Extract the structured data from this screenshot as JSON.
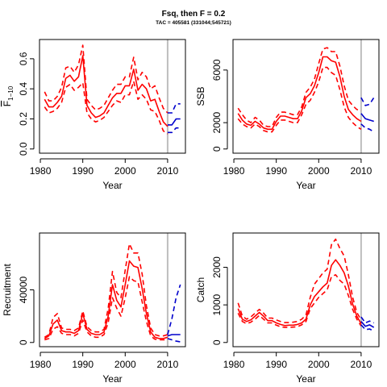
{
  "title": "Fsq, then F = 0.2",
  "subtitle": "TAC = 405581 (331044;545721)",
  "colors": {
    "historic": "#ff0000",
    "projection": "#0000cc",
    "divider": "#bebebe",
    "axis": "#000000"
  },
  "chart_data": [
    {
      "type": "line",
      "ylabel": "F̄₁₋₁₀",
      "ylabel_main": "F",
      "ylabel_sub": "1−10",
      "xlabel": "Year",
      "xlim": [
        1981,
        2013
      ],
      "ylim": [
        0,
        0.7
      ],
      "x_ticks": [
        "1980",
        "1990",
        "2000",
        "2010"
      ],
      "y_ticks": [
        "0.0",
        "0.2",
        "0.4",
        "0.6"
      ],
      "reference_year": 2010,
      "series": [
        {
          "style": "solid",
          "color": "red",
          "x": [
            1981,
            1982,
            1983,
            1984,
            1985,
            1986,
            1987,
            1988,
            1989,
            1990,
            1991,
            1992,
            1993,
            1994,
            1995,
            1996,
            1997,
            1998,
            1999,
            2000,
            2001,
            2002,
            2003,
            2004,
            2005,
            2006,
            2007,
            2008,
            2009,
            2010
          ],
          "y": [
            0.33,
            0.28,
            0.28,
            0.31,
            0.35,
            0.47,
            0.49,
            0.45,
            0.48,
            0.62,
            0.29,
            0.24,
            0.21,
            0.22,
            0.24,
            0.29,
            0.34,
            0.37,
            0.37,
            0.42,
            0.42,
            0.53,
            0.39,
            0.43,
            0.4,
            0.32,
            0.33,
            0.25,
            0.18,
            0.15
          ]
        },
        {
          "style": "dashed",
          "color": "red",
          "x": [
            1981,
            1982,
            1983,
            1984,
            1985,
            1986,
            1987,
            1988,
            1989,
            1990,
            1991,
            1992,
            1993,
            1994,
            1995,
            1996,
            1997,
            1998,
            1999,
            2000,
            2001,
            2002,
            2003,
            2004,
            2005,
            2006,
            2007,
            2008,
            2009,
            2010
          ],
          "y": [
            0.38,
            0.32,
            0.32,
            0.35,
            0.41,
            0.54,
            0.55,
            0.51,
            0.56,
            0.69,
            0.33,
            0.29,
            0.26,
            0.27,
            0.29,
            0.34,
            0.39,
            0.43,
            0.43,
            0.48,
            0.48,
            0.61,
            0.46,
            0.51,
            0.48,
            0.4,
            0.42,
            0.34,
            0.27,
            0.24
          ]
        },
        {
          "style": "dashed",
          "color": "red",
          "x": [
            1981,
            1982,
            1983,
            1984,
            1985,
            1986,
            1987,
            1988,
            1989,
            1990,
            1991,
            1992,
            1993,
            1994,
            1995,
            1996,
            1997,
            1998,
            1999,
            2000,
            2001,
            2002,
            2003,
            2004,
            2005,
            2006,
            2007,
            2008,
            2009,
            2010
          ],
          "y": [
            0.28,
            0.24,
            0.25,
            0.27,
            0.31,
            0.41,
            0.43,
            0.39,
            0.41,
            0.44,
            0.24,
            0.2,
            0.18,
            0.19,
            0.21,
            0.25,
            0.29,
            0.32,
            0.31,
            0.36,
            0.36,
            0.45,
            0.33,
            0.36,
            0.33,
            0.26,
            0.25,
            0.19,
            0.12,
            0.1
          ]
        },
        {
          "style": "solid",
          "color": "blue",
          "x": [
            2010,
            2011,
            2012,
            2013
          ],
          "y": [
            0.16,
            0.16,
            0.2,
            0.2
          ]
        },
        {
          "style": "dashed",
          "color": "blue",
          "x": [
            2010,
            2011,
            2012,
            2013
          ],
          "y": [
            0.24,
            0.24,
            0.3,
            0.3
          ]
        },
        {
          "style": "dashed",
          "color": "blue",
          "x": [
            2010,
            2011,
            2012,
            2013
          ],
          "y": [
            0.11,
            0.11,
            0.14,
            0.14
          ]
        }
      ]
    },
    {
      "type": "line",
      "ylabel": "SSB",
      "xlabel": "Year",
      "xlim": [
        1981,
        2013
      ],
      "ylim": [
        0,
        8000
      ],
      "x_ticks": [
        "1980",
        "1990",
        "2000",
        "2010"
      ],
      "y_ticks": [
        "0",
        "2000",
        "6000"
      ],
      "reference_year": 2010,
      "series": [
        {
          "style": "solid",
          "color": "red",
          "x": [
            1981,
            1982,
            1983,
            1984,
            1985,
            1986,
            1987,
            1988,
            1989,
            1990,
            1991,
            1992,
            1993,
            1994,
            1995,
            1996,
            1997,
            1998,
            1999,
            2000,
            2001,
            2002,
            2003,
            2004,
            2005,
            2006,
            2007,
            2008,
            2009,
            2010
          ],
          "y": [
            2700,
            2200,
            1900,
            1800,
            2100,
            1900,
            1600,
            1500,
            1500,
            2100,
            2500,
            2500,
            2400,
            2300,
            2300,
            2900,
            3900,
            4200,
            4800,
            5800,
            7000,
            7000,
            6700,
            6600,
            5500,
            4000,
            3000,
            2600,
            2300,
            2100
          ]
        },
        {
          "style": "dashed",
          "color": "red",
          "x": [
            1981,
            1982,
            1983,
            1984,
            1985,
            1986,
            1987,
            1988,
            1989,
            1990,
            1991,
            1992,
            1993,
            1994,
            1995,
            1996,
            1997,
            1998,
            1999,
            2000,
            2001,
            2002,
            2003,
            2004,
            2005,
            2006,
            2007,
            2008,
            2009,
            2010
          ],
          "y": [
            3100,
            2600,
            2200,
            2000,
            2400,
            2200,
            1800,
            1700,
            1700,
            2400,
            2800,
            2800,
            2700,
            2600,
            2600,
            3200,
            4300,
            4700,
            5300,
            6500,
            7600,
            7700,
            7400,
            7400,
            6300,
            4800,
            3700,
            3300,
            3000,
            2900
          ]
        },
        {
          "style": "dashed",
          "color": "red",
          "x": [
            1981,
            1982,
            1983,
            1984,
            1985,
            1986,
            1987,
            1988,
            1989,
            1990,
            1991,
            1992,
            1993,
            1994,
            1995,
            1996,
            1997,
            1998,
            1999,
            2000,
            2001,
            2002,
            2003,
            2004,
            2005,
            2006,
            2007,
            2008,
            2009,
            2010
          ],
          "y": [
            2300,
            1900,
            1700,
            1600,
            1900,
            1700,
            1400,
            1300,
            1300,
            1800,
            2200,
            2200,
            2100,
            2000,
            2000,
            2600,
            3400,
            3700,
            4300,
            5100,
            6200,
            6200,
            5800,
            5600,
            4500,
            3200,
            2400,
            2000,
            1700,
            1500
          ]
        },
        {
          "style": "solid",
          "color": "blue",
          "x": [
            2010,
            2011,
            2012,
            2013
          ],
          "y": [
            2700,
            2300,
            2200,
            2100
          ]
        },
        {
          "style": "dashed",
          "color": "blue",
          "x": [
            2010,
            2011,
            2012,
            2013
          ],
          "y": [
            3900,
            3300,
            3400,
            3900
          ]
        },
        {
          "style": "dashed",
          "color": "blue",
          "x": [
            2010,
            2011,
            2012,
            2013
          ],
          "y": [
            1900,
            1600,
            1500,
            1300
          ]
        }
      ]
    },
    {
      "type": "line",
      "ylabel": "Recruitment",
      "xlabel": "Year",
      "xlim": [
        1981,
        2013
      ],
      "ylim": [
        0,
        80000
      ],
      "x_ticks": [
        "1980",
        "1990",
        "2000",
        "2010"
      ],
      "y_ticks": [
        "0",
        "40000"
      ],
      "reference_year": 2010,
      "series": [
        {
          "style": "solid",
          "color": "red",
          "x": [
            1981,
            1982,
            1983,
            1984,
            1985,
            1986,
            1987,
            1988,
            1989,
            1990,
            1991,
            1992,
            1993,
            1994,
            1995,
            1996,
            1997,
            1998,
            1999,
            2000,
            2001,
            2002,
            2003,
            2004,
            2005,
            2006,
            2007,
            2008,
            2009,
            2010
          ],
          "y": [
            3000,
            5000,
            14000,
            17000,
            9000,
            8000,
            8000,
            7000,
            9000,
            22000,
            10000,
            7000,
            6000,
            6000,
            8000,
            20000,
            44000,
            32000,
            27000,
            44000,
            62000,
            58000,
            57000,
            41000,
            22000,
            8000,
            4000,
            3000,
            3000,
            4000
          ]
        },
        {
          "style": "dashed",
          "color": "red",
          "x": [
            1981,
            1982,
            1983,
            1984,
            1985,
            1986,
            1987,
            1988,
            1989,
            1990,
            1991,
            1992,
            1993,
            1994,
            1995,
            1996,
            1997,
            1998,
            1999,
            2000,
            2001,
            2002,
            2003,
            2004,
            2005,
            2006,
            2007,
            2008,
            2009,
            2010
          ],
          "y": [
            4000,
            6000,
            19000,
            22000,
            11000,
            10000,
            10000,
            9000,
            11000,
            24000,
            12000,
            9000,
            8000,
            8000,
            10000,
            26000,
            54000,
            38000,
            34000,
            55000,
            75000,
            68000,
            68000,
            52000,
            28000,
            11000,
            6000,
            5000,
            5000,
            6000
          ]
        },
        {
          "style": "dashed",
          "color": "red",
          "x": [
            1981,
            1982,
            1983,
            1984,
            1985,
            1986,
            1987,
            1988,
            1989,
            1990,
            1991,
            1992,
            1993,
            1994,
            1995,
            1996,
            1997,
            1998,
            1999,
            2000,
            2001,
            2002,
            2003,
            2004,
            2005,
            2006,
            2007,
            2008,
            2009,
            2010
          ],
          "y": [
            2000,
            3000,
            10000,
            12000,
            7000,
            6000,
            6000,
            5000,
            7000,
            17000,
            8000,
            5000,
            4000,
            4000,
            6000,
            15000,
            34000,
            26000,
            20000,
            34000,
            50000,
            47000,
            46000,
            31000,
            16000,
            5000,
            2500,
            2000,
            2000,
            2000
          ]
        },
        {
          "style": "solid",
          "color": "blue",
          "x": [
            2010,
            2011,
            2012,
            2013
          ],
          "y": [
            5000,
            6000,
            6000,
            6000
          ]
        },
        {
          "style": "dashed",
          "color": "blue",
          "x": [
            2010,
            2011,
            2012,
            2013
          ],
          "y": [
            6000,
            18000,
            34000,
            44000
          ]
        },
        {
          "style": "dashed",
          "color": "blue",
          "x": [
            2010,
            2011,
            2012,
            2013
          ],
          "y": [
            3000,
            2000,
            1000,
            500
          ]
        }
      ]
    },
    {
      "type": "line",
      "ylabel": "Catch",
      "xlabel": "Year",
      "xlim": [
        1981,
        2013
      ],
      "ylim": [
        0,
        2800
      ],
      "x_ticks": [
        "1980",
        "1990",
        "2000",
        "2010"
      ],
      "y_ticks": [
        "0",
        "1000",
        "2000"
      ],
      "reference_year": 2010,
      "series": [
        {
          "style": "solid",
          "color": "red",
          "x": [
            1981,
            1982,
            1983,
            1984,
            1985,
            1986,
            1987,
            1988,
            1989,
            1990,
            1991,
            1992,
            1993,
            1994,
            1995,
            1996,
            1997,
            1998,
            1999,
            2000,
            2001,
            2002,
            2003,
            2004,
            2005,
            2006,
            2007,
            2008,
            2009,
            2010
          ],
          "y": [
            900,
            620,
            560,
            600,
            700,
            800,
            700,
            580,
            580,
            520,
            480,
            450,
            460,
            460,
            480,
            520,
            620,
            1000,
            1220,
            1350,
            1480,
            1580,
            2050,
            2200,
            2050,
            1850,
            1500,
            1020,
            700,
            500
          ]
        },
        {
          "style": "dashed",
          "color": "red",
          "x": [
            1981,
            1982,
            1983,
            1984,
            1985,
            1986,
            1987,
            1988,
            1989,
            1990,
            1991,
            1992,
            1993,
            1994,
            1995,
            1996,
            1997,
            1998,
            1999,
            2000,
            2001,
            2002,
            2003,
            2004,
            2005,
            2006,
            2007,
            2008,
            2009,
            2010
          ],
          "y": [
            1050,
            700,
            620,
            680,
            780,
            880,
            780,
            650,
            650,
            600,
            560,
            530,
            530,
            540,
            560,
            620,
            730,
            1200,
            1550,
            1700,
            1850,
            1950,
            2600,
            2750,
            2500,
            2300,
            1800,
            1200,
            800,
            600
          ]
        },
        {
          "style": "dashed",
          "color": "red",
          "x": [
            1981,
            1982,
            1983,
            1984,
            1985,
            1986,
            1987,
            1988,
            1989,
            1990,
            1991,
            1992,
            1993,
            1994,
            1995,
            1996,
            1997,
            1998,
            1999,
            2000,
            2001,
            2002,
            2003,
            2004,
            2005,
            2006,
            2007,
            2008,
            2009,
            2010
          ],
          "y": [
            780,
            560,
            500,
            540,
            620,
            720,
            620,
            520,
            520,
            460,
            420,
            400,
            400,
            410,
            420,
            470,
            560,
            900,
            1050,
            1200,
            1300,
            1400,
            1750,
            1800,
            1650,
            1550,
            1250,
            880,
            620,
            440
          ]
        },
        {
          "style": "solid",
          "color": "blue",
          "x": [
            2010,
            2011,
            2012,
            2013
          ],
          "y": [
            560,
            430,
            470,
            400
          ]
        },
        {
          "style": "dashed",
          "color": "blue",
          "x": [
            2010,
            2011,
            2012,
            2013
          ],
          "y": [
            680,
            520,
            570,
            520
          ]
        },
        {
          "style": "dashed",
          "color": "blue",
          "x": [
            2010,
            2011,
            2012,
            2013
          ],
          "y": [
            470,
            340,
            360,
            300
          ]
        }
      ]
    }
  ]
}
